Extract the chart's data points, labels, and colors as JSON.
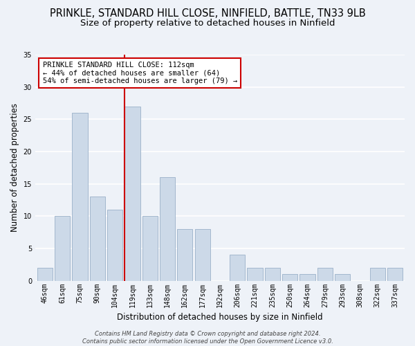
{
  "title": "PRINKLE, STANDARD HILL CLOSE, NINFIELD, BATTLE, TN33 9LB",
  "subtitle": "Size of property relative to detached houses in Ninfield",
  "xlabel": "Distribution of detached houses by size in Ninfield",
  "ylabel": "Number of detached properties",
  "bin_labels": [
    "46sqm",
    "61sqm",
    "75sqm",
    "90sqm",
    "104sqm",
    "119sqm",
    "133sqm",
    "148sqm",
    "162sqm",
    "177sqm",
    "192sqm",
    "206sqm",
    "221sqm",
    "235sqm",
    "250sqm",
    "264sqm",
    "279sqm",
    "293sqm",
    "308sqm",
    "322sqm",
    "337sqm"
  ],
  "bar_heights": [
    2,
    10,
    26,
    13,
    11,
    27,
    10,
    16,
    8,
    8,
    0,
    4,
    2,
    2,
    1,
    1,
    2,
    1,
    0,
    2,
    2
  ],
  "bar_color": "#ccd9e8",
  "bar_edge_color": "#9ab0c8",
  "vline_color": "#cc0000",
  "annotation_text": "PRINKLE STANDARD HILL CLOSE: 112sqm\n← 44% of detached houses are smaller (64)\n54% of semi-detached houses are larger (79) →",
  "annotation_box_color": "#ffffff",
  "annotation_box_edge": "#cc0000",
  "ylim": [
    0,
    35
  ],
  "yticks": [
    0,
    5,
    10,
    15,
    20,
    25,
    30,
    35
  ],
  "footnote": "Contains HM Land Registry data © Crown copyright and database right 2024.\nContains public sector information licensed under the Open Government Licence v3.0.",
  "background_color": "#eef2f8",
  "grid_color": "#ffffff",
  "title_fontsize": 10.5,
  "subtitle_fontsize": 9.5,
  "axis_label_fontsize": 8.5,
  "tick_fontsize": 7,
  "footnote_fontsize": 6,
  "annotation_fontsize": 7.5
}
